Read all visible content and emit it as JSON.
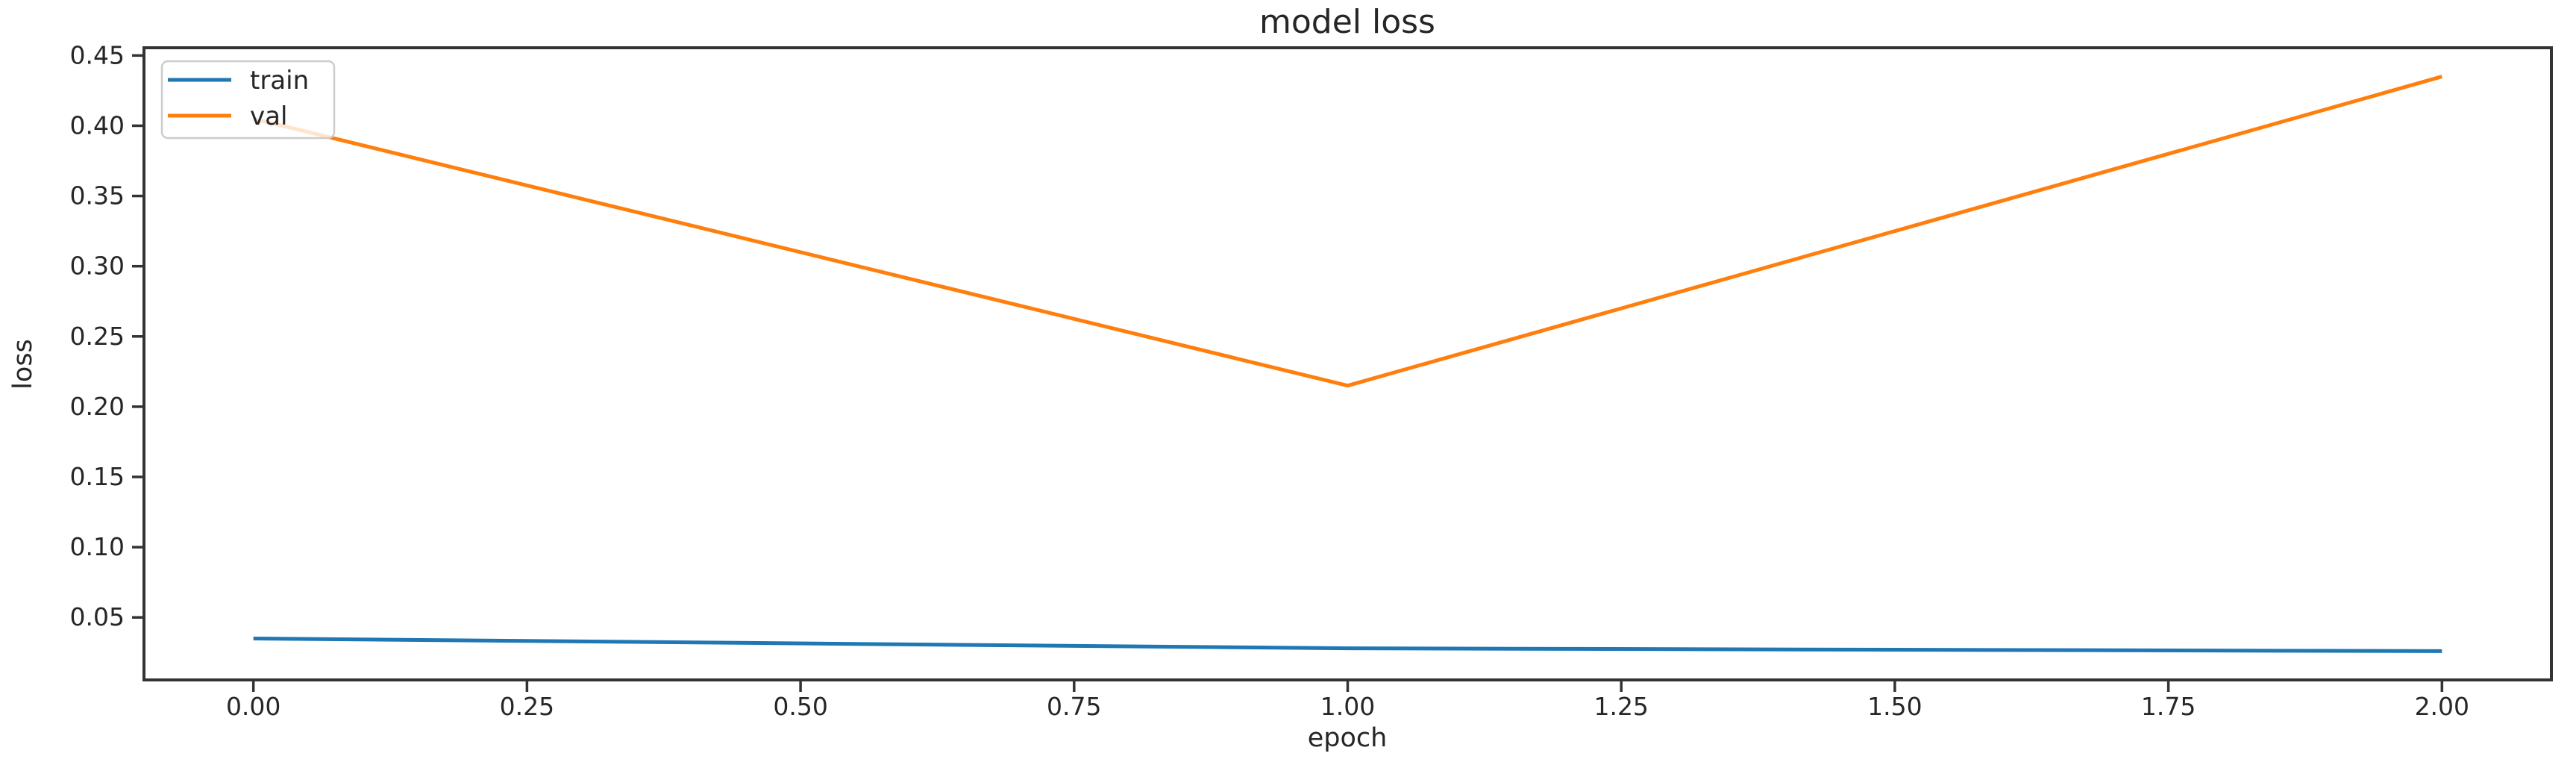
{
  "chart_data": {
    "type": "line",
    "title": "model loss",
    "xlabel": "epoch",
    "ylabel": "loss",
    "x": [
      0,
      1,
      2
    ],
    "series": [
      {
        "name": "train",
        "color": "#1f77b4",
        "values": [
          0.035,
          0.028,
          0.026
        ]
      },
      {
        "name": "val",
        "color": "#ff7f0e",
        "values": [
          0.405,
          0.215,
          0.435
        ]
      }
    ],
    "xticks": [
      0.0,
      0.25,
      0.5,
      0.75,
      1.0,
      1.25,
      1.5,
      1.75,
      2.0
    ],
    "yticks": [
      0.05,
      0.1,
      0.15,
      0.2,
      0.25,
      0.3,
      0.35,
      0.4,
      0.45
    ],
    "xlim": [
      -0.1,
      2.1
    ],
    "ylim": [
      0.0055,
      0.4555
    ],
    "tick_decimals": 2,
    "grid": false,
    "legend": {
      "position": "upper left",
      "entries": [
        "train",
        "val"
      ]
    },
    "colors": {
      "background": "#ffffff",
      "axis": "#333333",
      "text": "#262626",
      "legend_border": "#cccccc",
      "train": "#1f77b4",
      "val": "#ff7f0e"
    }
  }
}
